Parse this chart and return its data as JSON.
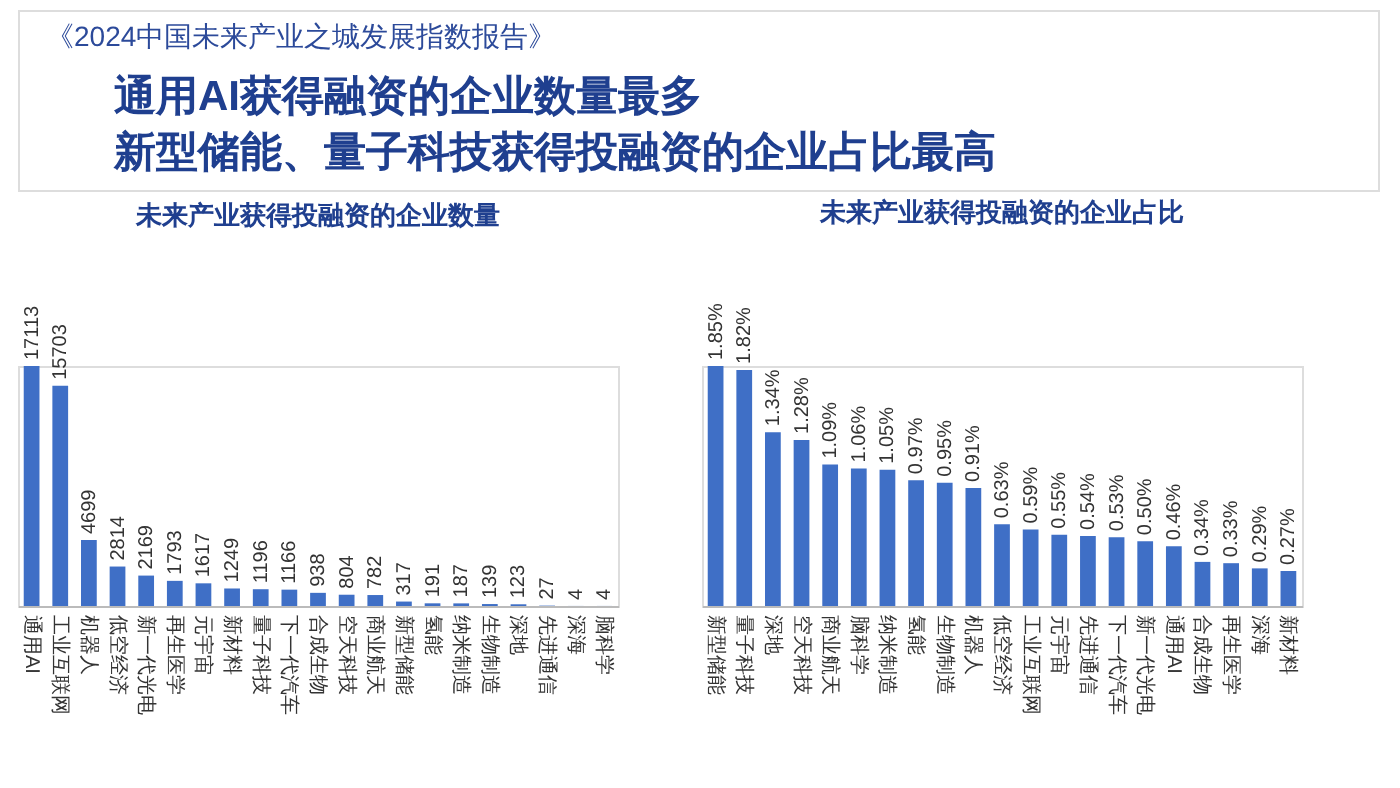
{
  "chart_data": [
    {
      "type": "bar",
      "title": "未来产业获得投融资的企业数量",
      "annotations": [
        "《2024中国未来产业之城发展指数报告》",
        "通用AI获得融资的企业数量最多",
        "新型储能、量子科技获得投融资的企业占比最高"
      ],
      "categories": [
        "通用AI",
        "工业互联网",
        "机器人",
        "低空经济",
        "新一代光电",
        "再生医学",
        "元宇宙",
        "新材料",
        "量子科技",
        "下一代汽车",
        "合成生物",
        "空天科技",
        "商业航天",
        "新型储能",
        "氢能",
        "纳米制造",
        "生物制造",
        "深地",
        "先进通信",
        "深海",
        "脑科学"
      ],
      "values": [
        17113,
        15703,
        4699,
        2814,
        2169,
        1793,
        1617,
        1249,
        1196,
        1166,
        938,
        804,
        782,
        317,
        191,
        187,
        139,
        123,
        27,
        4,
        4
      ],
      "color": "#3f6fc6",
      "data_labels": true
    },
    {
      "type": "bar",
      "title": "未来产业获得投融资的企业占比",
      "categories": [
        "新型储能",
        "量子科技",
        "深地",
        "空天科技",
        "商业航天",
        "脑科学",
        "纳米制造",
        "氢能",
        "生物制造",
        "机器人",
        "低空经济",
        "工业互联网",
        "元宇宙",
        "先进通信",
        "下一代汽车",
        "新一代光电",
        "通用AI",
        "合成生物",
        "再生医学",
        "深海",
        "新材料"
      ],
      "values": [
        1.85,
        1.82,
        1.34,
        1.28,
        1.09,
        1.06,
        1.05,
        0.97,
        0.95,
        0.91,
        0.63,
        0.59,
        0.55,
        0.54,
        0.53,
        0.5,
        0.46,
        0.34,
        0.33,
        0.29,
        0.27
      ],
      "value_labels": [
        "1.85%",
        "1.82%",
        "1.34%",
        "1.28%",
        "1.09%",
        "1.06%",
        "1.05%",
        "0.97%",
        "0.95%",
        "0.91%",
        "0.63%",
        "0.59%",
        "0.55%",
        "0.54%",
        "0.53%",
        "0.50%",
        "0.46%",
        "0.34%",
        "0.33%",
        "0.29%",
        "0.27%"
      ],
      "color": "#3f6fc6"
    }
  ]
}
